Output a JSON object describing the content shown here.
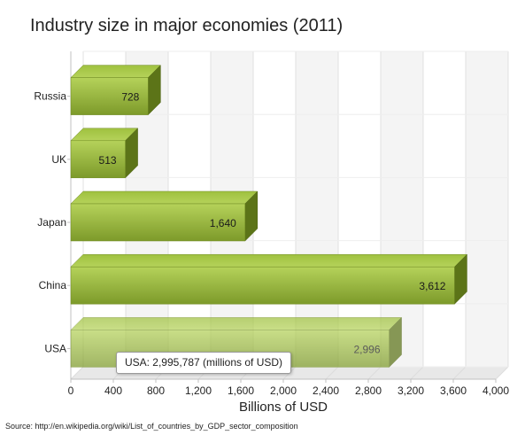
{
  "title": "Industry size in major economies (2011)",
  "source": "Source: http://en.wikipedia.org/wiki/List_of_countries_by_GDP_sector_composition",
  "tooltip": "USA: 2,995,787 (millions of USD)",
  "colors": {
    "bar_main": "#7d9a2a",
    "bar_light": "#b5d25a",
    "bar_dark": "#5c7418",
    "band": "#f4f4f4"
  },
  "chart_data": {
    "type": "bar",
    "orientation": "horizontal",
    "title": "Industry size in major economies (2011)",
    "xlabel": "Billions of USD",
    "ylabel": "",
    "categories": [
      "Russia",
      "UK",
      "Japan",
      "China",
      "USA"
    ],
    "values": [
      728,
      513,
      1640,
      3612,
      2996
    ],
    "value_labels": [
      "728",
      "513",
      "1,640",
      "3,612",
      "2,996"
    ],
    "xlim": [
      0,
      4000
    ],
    "x_ticks": [
      0,
      400,
      800,
      1200,
      1600,
      2000,
      2400,
      2800,
      3200,
      3600,
      4000
    ],
    "x_tick_labels": [
      "0",
      "400",
      "800",
      "1,200",
      "1,600",
      "2,000",
      "2,400",
      "2,800",
      "3,200",
      "3,600",
      "4,000"
    ],
    "grid": true,
    "legend": "none",
    "highlighted": "USA"
  }
}
